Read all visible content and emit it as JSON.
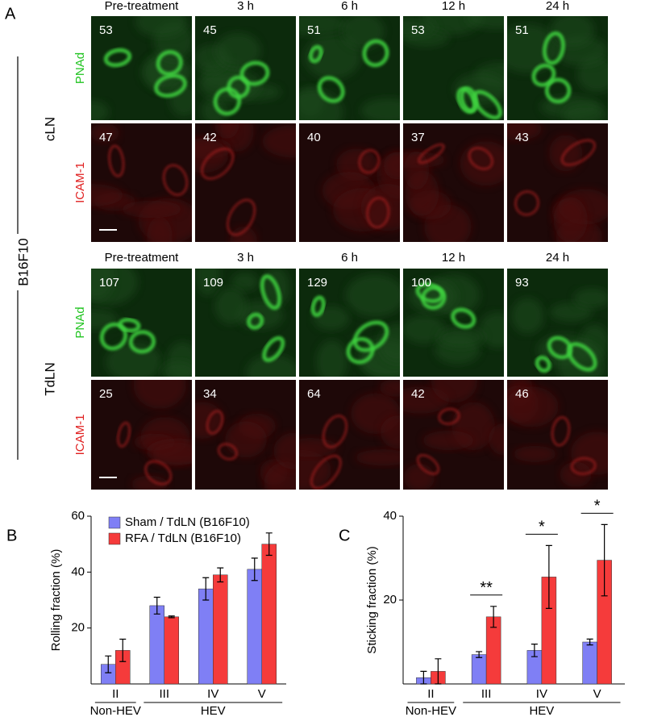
{
  "panel_a": {
    "label": "A",
    "cell_line": "B16F10",
    "timepoints": [
      "Pre-treatment",
      "3 h",
      "6 h",
      "12 h",
      "24 h"
    ],
    "sections": [
      {
        "name": "cLN",
        "rows": [
          {
            "stain": "PNAd",
            "color": "#22c422",
            "counts": [
              53,
              45,
              51,
              53,
              51
            ]
          },
          {
            "stain": "ICAM-1",
            "color": "#e02020",
            "counts": [
              47,
              42,
              40,
              37,
              43
            ]
          }
        ]
      },
      {
        "name": "TdLN",
        "rows": [
          {
            "stain": "PNAd",
            "color": "#22c422",
            "counts": [
              107,
              109,
              129,
              100,
              93
            ]
          },
          {
            "stain": "ICAM-1",
            "color": "#e02020",
            "counts": [
              25,
              34,
              64,
              42,
              46
            ]
          }
        ]
      }
    ]
  },
  "chart_data": [
    {
      "type": "bar",
      "panel": "B",
      "ylabel": "Rolling fraction (%)",
      "categories": [
        "II",
        "III",
        "IV",
        "V"
      ],
      "groups": [
        {
          "label": "Non-HEV",
          "members": [
            "II"
          ]
        },
        {
          "label": "HEV",
          "members": [
            "III",
            "IV",
            "V"
          ]
        }
      ],
      "series": [
        {
          "name": "Sham / TdLN (B16F10)",
          "color": "#7f7ff5",
          "values": [
            7,
            28,
            34,
            41
          ],
          "errors": [
            3,
            3,
            4,
            4
          ]
        },
        {
          "name": "RFA / TdLN (B16F10)",
          "color": "#f53b3b",
          "values": [
            12,
            24,
            39,
            50
          ],
          "errors": [
            4,
            0.3,
            2.5,
            4
          ]
        }
      ],
      "ylim": [
        0,
        60
      ],
      "yticks": [
        20,
        40,
        60
      ],
      "legend": "upper left"
    },
    {
      "type": "bar",
      "panel": "C",
      "ylabel": "Sticking fraction (%)",
      "categories": [
        "II",
        "III",
        "IV",
        "V"
      ],
      "groups": [
        {
          "label": "Non-HEV",
          "members": [
            "II"
          ]
        },
        {
          "label": "HEV",
          "members": [
            "III",
            "IV",
            "V"
          ]
        }
      ],
      "series": [
        {
          "name": "Sham / TdLN (B16F10)",
          "color": "#7f7ff5",
          "values": [
            1.5,
            7,
            8,
            10
          ],
          "errors": [
            1.5,
            0.7,
            1.5,
            0.7
          ]
        },
        {
          "name": "RFA / TdLN (B16F10)",
          "color": "#f53b3b",
          "values": [
            3,
            16,
            25.5,
            29.5
          ],
          "errors": [
            3,
            2.5,
            7.5,
            8.5
          ]
        }
      ],
      "ylim": [
        0,
        40
      ],
      "yticks": [
        20,
        40
      ],
      "annotations": [
        {
          "text": "**",
          "category": "III"
        },
        {
          "text": "*",
          "category": "IV"
        },
        {
          "text": "*",
          "category": "V"
        }
      ]
    }
  ]
}
